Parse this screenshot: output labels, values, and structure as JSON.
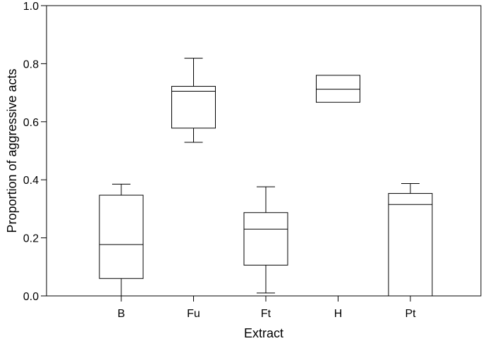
{
  "chart_data": {
    "type": "box",
    "title": "",
    "xlabel": "Extract",
    "ylabel": "Proportion of aggressive acts",
    "ylim": [
      0.0,
      1.0
    ],
    "yticks": [
      "0.0",
      "0.2",
      "0.4",
      "0.6",
      "0.8",
      "1.0"
    ],
    "grid": false,
    "categories": [
      "B",
      "Fu",
      "Ft",
      "H",
      "Pt"
    ],
    "boxes": [
      {
        "category": "B",
        "min": 0.0,
        "q1": 0.06,
        "median": 0.177,
        "q3": 0.347,
        "max": 0.385
      },
      {
        "category": "Fu",
        "min": 0.529,
        "q1": 0.578,
        "median": 0.705,
        "q3": 0.722,
        "max": 0.819
      },
      {
        "category": "Ft",
        "min": 0.01,
        "q1": 0.106,
        "median": 0.23,
        "q3": 0.287,
        "max": 0.376
      },
      {
        "category": "H",
        "min": 0.667,
        "q1": 0.667,
        "median": 0.712,
        "q3": 0.76,
        "max": 0.76
      },
      {
        "category": "Pt",
        "min": 0.0,
        "q1": 0.0,
        "median": 0.315,
        "q3": 0.353,
        "max": 0.387
      }
    ]
  }
}
